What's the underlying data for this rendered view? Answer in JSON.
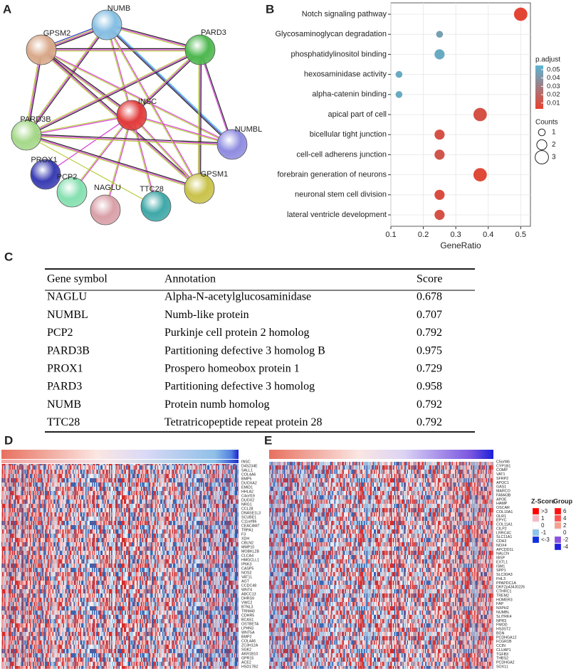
{
  "panel_labels": [
    "A",
    "B",
    "C",
    "D",
    "E"
  ],
  "network": {
    "nodes": [
      {
        "label": "NUMB",
        "color": "#86bfe3"
      },
      {
        "label": "GPSM2",
        "color": "#d9a98a"
      },
      {
        "label": "PARD3",
        "color": "#4fb84f"
      },
      {
        "label": "INSC",
        "color": "#e23b3b"
      },
      {
        "label": "PARD3B",
        "color": "#a6d98a"
      },
      {
        "label": "NUMBL",
        "color": "#8f8ce0"
      },
      {
        "label": "PROX1",
        "color": "#3a3db3"
      },
      {
        "label": "GPSM1",
        "color": "#c9c24a"
      },
      {
        "label": "PCP2",
        "color": "#86e0b0"
      },
      {
        "label": "NAGLU",
        "color": "#d9a0a8"
      },
      {
        "label": "TTC28",
        "color": "#3fa8a8"
      }
    ]
  },
  "chart_data": {
    "type": "dot",
    "categories": [
      "Notch signaling pathway",
      "Glycosaminoglycan degradation",
      "phosphatidylinositol binding",
      "hexosaminidase activity",
      "alpha-catenin binding",
      "apical part of cell",
      "bicellular tight junction",
      "cell-cell adherens junction",
      "forebrain generation of neurons",
      "neuronal stem cell division",
      "lateral ventricle development"
    ],
    "values": [
      0.5,
      0.25,
      0.25,
      0.125,
      0.125,
      0.375,
      0.25,
      0.25,
      0.375,
      0.25,
      0.25
    ],
    "counts": [
      3,
      1,
      2,
      1,
      1,
      3,
      2,
      2,
      3,
      2,
      2
    ],
    "p_adjust": [
      0.005,
      0.045,
      0.05,
      0.05,
      0.05,
      0.01,
      0.01,
      0.012,
      0.006,
      0.008,
      0.01
    ],
    "xlabel": "GeneRatio",
    "xlim": [
      0.1,
      0.53
    ],
    "xticks": [
      0.1,
      0.2,
      0.3,
      0.4,
      0.5
    ],
    "grid": true,
    "color_legend": {
      "title": "p.adjust",
      "lim": [
        0.003,
        0.055
      ],
      "ticks": [
        0.01,
        0.02,
        0.03,
        0.04,
        0.05
      ],
      "low_color": "#e8412f",
      "high_color": "#5bb5d3"
    },
    "size_legend": {
      "title": "Counts",
      "values": [
        1,
        2,
        3
      ]
    }
  },
  "table": {
    "columns": [
      "Gene symbol",
      "Annotation",
      "Score"
    ],
    "rows": [
      [
        "NAGLU",
        "Alpha-N-acetylglucosaminidase",
        0.678
      ],
      [
        "NUMBL",
        "Numb-like protein",
        0.707
      ],
      [
        "PCP2",
        "Purkinje cell protein 2 homolog",
        0.792
      ],
      [
        "PARD3B",
        "Partitioning defective 3 homolog B",
        0.975
      ],
      [
        "PROX1",
        "Prospero homeobox protein 1",
        0.729
      ],
      [
        "PARD3",
        "Partitioning defective 3 homolog",
        0.958
      ],
      [
        "NUMB",
        "Protein numb homolog",
        0.792
      ],
      [
        "TTC28",
        "Tetratricopeptide repeat protein 28",
        0.792
      ]
    ]
  },
  "heatmap_d": {
    "genes": [
      "INSC",
      "D4S234E",
      "SALL1",
      "COL4A6",
      "BMP5",
      "DUOXA2",
      "EMID1",
      "HHLA2",
      "C4orf19",
      "DUOX2",
      "NRG1",
      "CCL28",
      "DNASE1L3",
      "SCUBE1",
      "C11orf86",
      "CEACAM7",
      "TRPA1",
      "F3",
      "XDH",
      "CBLN2",
      "MMP10",
      "MOBKL2B",
      "CLCA4",
      "HMGCLL1",
      "IP6K3",
      "CASP5",
      "NOS2",
      "VAT1L",
      "AGT",
      "CCDC48",
      "WNT4",
      "ABCC13",
      "DHRS9",
      "VWC2",
      "BTNL3",
      "TRIM40",
      "CDHR5",
      "BCAS1",
      "OSTBETA",
      "LPHN3",
      "WNT5A",
      "BMP2",
      "COL4A5",
      "ZC3H12A",
      "SGK2",
      "AKR1B10",
      "GPR15",
      "ACE2",
      "HSD17B2"
    ]
  },
  "heatmap_e": {
    "genes": [
      "C5orf46",
      "CYP1B1",
      "COMP",
      "VAT1",
      "SFRP2",
      "APOC1",
      "GAS1",
      "MARCO",
      "FAM43B",
      "APOE",
      "HAMP",
      "OSCAR",
      "COL10A1",
      "OLR1",
      "EPYC",
      "COL11A1",
      "CILP2",
      "LRRC4C",
      "SLC11A1",
      "CDH2",
      "NOX4",
      "APCDD1L",
      "NALCN",
      "IBSP",
      "EXTL1",
      "ISM1",
      "SPP1",
      "SLC30A3",
      "FHL3",
      "PPAPDC1A",
      "DKFZp434J0226",
      "CTHRC1",
      "TREM2",
      "HOMER3",
      "FAP",
      "NXPH2",
      "NUMBL",
      "SLITRK4",
      "NPR3",
      "FMOD",
      "HS3ST2",
      "BGN",
      "PCDHGA12",
      "FCGR1B",
      "CCIN",
      "CLUAP1",
      "TGFB3",
      "THBS2",
      "PCDHGA2",
      "SOX11"
    ]
  },
  "heatmap_legend": {
    "zscore": {
      "title": "Z-Score",
      "labels": [
        ">3",
        "1",
        "0",
        "-1",
        "<-3"
      ],
      "colors": [
        "#ff0000",
        "#f5b8c4",
        "#ffffff",
        "#8fc4e8",
        "#1030e0"
      ]
    },
    "group": {
      "title": "Group",
      "labels": [
        6,
        4,
        2,
        0,
        -2,
        -4
      ],
      "colors": [
        "#ff1010",
        "#ff5050",
        "#f5a090",
        "#ffffff",
        "#8a50e0",
        "#2020e0"
      ]
    }
  }
}
